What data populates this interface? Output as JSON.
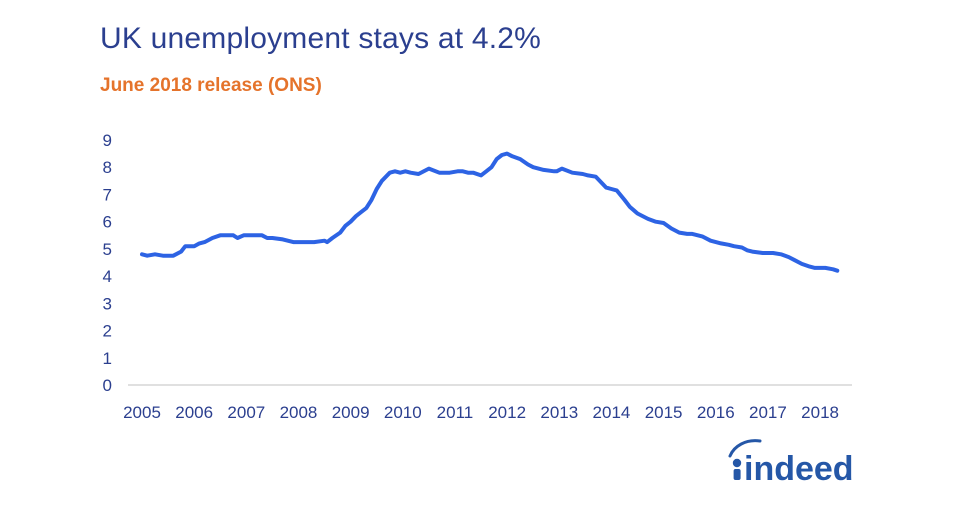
{
  "title": "UK unemployment stays at 4.2%",
  "subtitle": "June 2018 release (ONS)",
  "brand": {
    "logo_text": "indeed",
    "color": "#2557a7"
  },
  "colors": {
    "line": "#2d63e4",
    "title": "#2b3f8f",
    "subtitle": "#e5732b",
    "axis": "#d6d6d6"
  },
  "chart_data": {
    "type": "line",
    "title": "UK unemployment stays at 4.2%",
    "subtitle": "June 2018 release (ONS)",
    "xlabel": "",
    "ylabel": "",
    "xlim": [
      2005,
      2018.42
    ],
    "ylim": [
      0,
      9
    ],
    "x_ticks": [
      "2005",
      "2006",
      "2007",
      "2008",
      "2009",
      "2010",
      "2011",
      "2012",
      "2013",
      "2014",
      "2015",
      "2016",
      "2017",
      "2018"
    ],
    "y_ticks": [
      "0",
      "1",
      "2",
      "3",
      "4",
      "5",
      "6",
      "7",
      "8",
      "9"
    ],
    "grid": false,
    "legend": "none",
    "series": [
      {
        "x": [
          2005.0,
          2005.1,
          2005.25,
          2005.4,
          2005.6,
          2005.75,
          2005.83,
          2006.0,
          2006.1,
          2006.2,
          2006.35,
          2006.5,
          2006.6,
          2006.75,
          2006.83,
          2006.95,
          2007.1,
          2007.3,
          2007.4,
          2007.5,
          2007.7,
          2007.9,
          2008.1,
          2008.3,
          2008.5,
          2008.55,
          2008.65,
          2008.8,
          2008.9,
          2009.0,
          2009.1,
          2009.2,
          2009.3,
          2009.4,
          2009.5,
          2009.6,
          2009.75,
          2009.85,
          2009.95,
          2010.05,
          2010.15,
          2010.3,
          2010.5,
          2010.7,
          2010.9,
          2011.05,
          2011.15,
          2011.25,
          2011.35,
          2011.5,
          2011.6,
          2011.7,
          2011.8,
          2011.9,
          2012.0,
          2012.1,
          2012.25,
          2012.4,
          2012.5,
          2012.7,
          2012.9,
          2012.95,
          2013.05,
          2013.25,
          2013.45,
          2013.55,
          2013.7,
          2013.9,
          2014.0,
          2014.1,
          2014.25,
          2014.35,
          2014.5,
          2014.7,
          2014.85,
          2015.0,
          2015.15,
          2015.3,
          2015.45,
          2015.55,
          2015.75,
          2015.9,
          2016.1,
          2016.25,
          2016.35,
          2016.5,
          2016.6,
          2016.7,
          2016.9,
          2017.1,
          2017.25,
          2017.4,
          2017.5,
          2017.65,
          2017.8,
          2017.9,
          2018.0,
          2018.1,
          2018.25,
          2018.33
        ],
        "values": [
          4.8,
          4.75,
          4.8,
          4.75,
          4.75,
          4.9,
          5.1,
          5.1,
          5.2,
          5.25,
          5.4,
          5.5,
          5.5,
          5.5,
          5.4,
          5.5,
          5.5,
          5.5,
          5.4,
          5.4,
          5.35,
          5.25,
          5.25,
          5.25,
          5.3,
          5.25,
          5.4,
          5.6,
          5.85,
          6.0,
          6.2,
          6.35,
          6.5,
          6.8,
          7.2,
          7.5,
          7.8,
          7.85,
          7.8,
          7.85,
          7.8,
          7.75,
          7.95,
          7.8,
          7.8,
          7.85,
          7.85,
          7.8,
          7.8,
          7.7,
          7.85,
          8.0,
          8.3,
          8.45,
          8.5,
          8.4,
          8.3,
          8.1,
          8.0,
          7.9,
          7.85,
          7.85,
          7.95,
          7.8,
          7.75,
          7.7,
          7.65,
          7.25,
          7.2,
          7.15,
          6.8,
          6.55,
          6.3,
          6.1,
          6.0,
          5.95,
          5.75,
          5.6,
          5.55,
          5.55,
          5.45,
          5.3,
          5.2,
          5.15,
          5.1,
          5.05,
          4.95,
          4.9,
          4.85,
          4.85,
          4.8,
          4.7,
          4.6,
          4.45,
          4.35,
          4.3,
          4.3,
          4.3,
          4.25,
          4.2
        ]
      }
    ]
  }
}
